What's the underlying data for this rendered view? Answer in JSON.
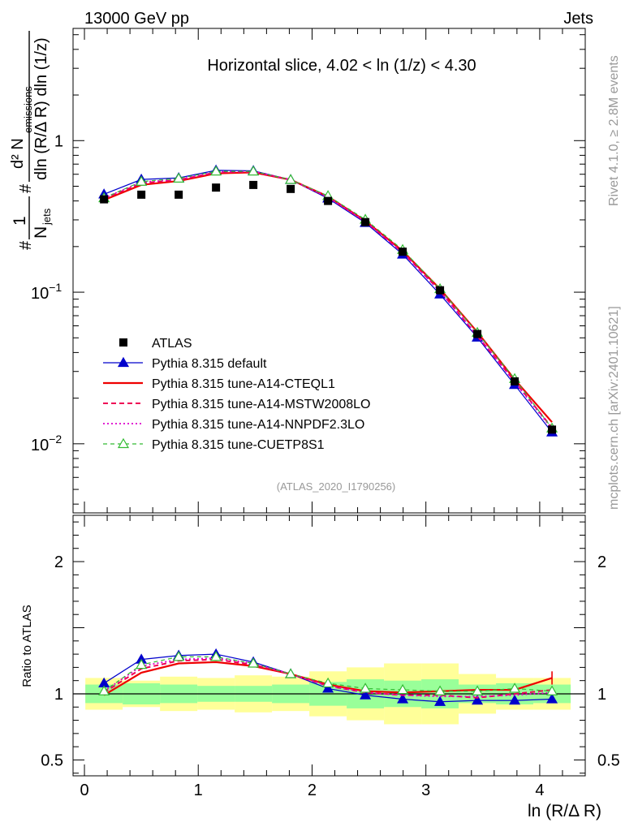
{
  "header": {
    "energy_label": "13000 GeV pp",
    "process_label": "Jets"
  },
  "side": {
    "rivet_label": "Rivet 4.1.0, ≥ 2.8M events",
    "mcplots_label": "mcplots.cern.ch [arXiv:2401.10621]"
  },
  "chart_data": {
    "type": "line",
    "title": "Horizontal slice, 4.02 < ln (1/z) < 4.30",
    "watermark": "(ATLAS_2020_I1790256)",
    "xlabel": "ln (R/Δ R)",
    "ylabel": {
      "prefix": "1",
      "n_jets": "N",
      "n_jets_sub": "jets",
      "numerator": "d² N",
      "numerator_sub": "emissions",
      "denominator": "dln (R/Δ R) dln (1/z)",
      "hash": "#"
    },
    "ratio_ylabel": "Ratio to ATLAS",
    "xlim": [
      -0.1,
      4.4
    ],
    "ylim_main": [
      0.0035,
      5.5
    ],
    "ylim_ratio": [
      0.38,
      2.35
    ],
    "x_ticks": [
      "0",
      "1",
      "2",
      "3",
      "4"
    ],
    "y_ticks_main": [
      {
        "value": 1,
        "base": "1",
        "exp": ""
      },
      {
        "value": 0.1,
        "base": "10",
        "exp": "−1"
      },
      {
        "value": 0.01,
        "base": "10",
        "exp": "−2"
      }
    ],
    "y_ticks_ratio": [
      {
        "value": 2,
        "label": "2"
      },
      {
        "value": 1,
        "label": "1"
      },
      {
        "value": 0.5,
        "label": "0.5"
      }
    ],
    "x": [
      0.172,
      0.5,
      0.828,
      1.156,
      1.484,
      1.812,
      2.14,
      2.468,
      2.796,
      3.124,
      3.452,
      3.78,
      4.108
    ],
    "bin_edges": [
      0.008,
      0.336,
      0.664,
      0.992,
      1.32,
      1.648,
      1.976,
      2.304,
      2.632,
      2.96,
      3.288,
      3.616,
      3.944,
      4.272
    ],
    "data": {
      "name": "ATLAS",
      "values": [
        0.41,
        0.44,
        0.44,
        0.49,
        0.51,
        0.48,
        0.4,
        0.29,
        0.185,
        0.103,
        0.053,
        0.0258,
        0.0124
      ],
      "stat_band": [
        0.07,
        0.08,
        0.07,
        0.06,
        0.06,
        0.07,
        0.09,
        0.11,
        0.1,
        0.11,
        0.07,
        0.08,
        0.07
      ],
      "total_band": [
        0.12,
        0.1,
        0.13,
        0.12,
        0.14,
        0.13,
        0.17,
        0.2,
        0.23,
        0.23,
        0.15,
        0.12,
        0.12
      ]
    },
    "series": [
      {
        "name": "Pythia 8.315 default",
        "color": "#0000cc",
        "dash": "",
        "width": 1.2,
        "marker": "triangle",
        "ratio": [
          1.08,
          1.26,
          1.29,
          1.3,
          1.24,
          1.15,
          1.04,
          0.99,
          0.96,
          0.94,
          0.95,
          0.95,
          0.96
        ]
      },
      {
        "name": "Pythia 8.315 tune-A14-CTEQL1",
        "color": "#ee0000",
        "dash": "",
        "width": 2.2,
        "marker": "none",
        "ratio": [
          0.99,
          1.16,
          1.23,
          1.24,
          1.21,
          1.15,
          1.07,
          1.02,
          1.01,
          1.02,
          1.03,
          1.03,
          1.12
        ]
      },
      {
        "name": "Pythia 8.315 tune-A14-MSTW2008LO",
        "color": "#ee0055",
        "dash": "6,4",
        "width": 2.0,
        "marker": "none",
        "ratio": [
          1.01,
          1.19,
          1.25,
          1.26,
          1.22,
          1.15,
          1.06,
          1.01,
          0.99,
          0.99,
          0.97,
          1.0,
          1.03
        ]
      },
      {
        "name": "Pythia 8.315 tune-A14-NNPDF2.3LO",
        "color": "#dd00cc",
        "dash": "2,3",
        "width": 1.8,
        "marker": "none",
        "ratio": [
          1.02,
          1.21,
          1.26,
          1.27,
          1.23,
          1.15,
          1.06,
          1.01,
          0.99,
          0.98,
          0.98,
          0.99,
          1.01
        ]
      },
      {
        "name": "Pythia 8.315 tune-CUETP8S1",
        "color": "#33bb33",
        "dash": "5,4",
        "width": 1.2,
        "marker": "open-triangle",
        "ratio": [
          1.02,
          1.22,
          1.28,
          1.28,
          1.23,
          1.15,
          1.08,
          1.04,
          1.03,
          1.02,
          1.02,
          1.04,
          1.02
        ]
      }
    ]
  }
}
